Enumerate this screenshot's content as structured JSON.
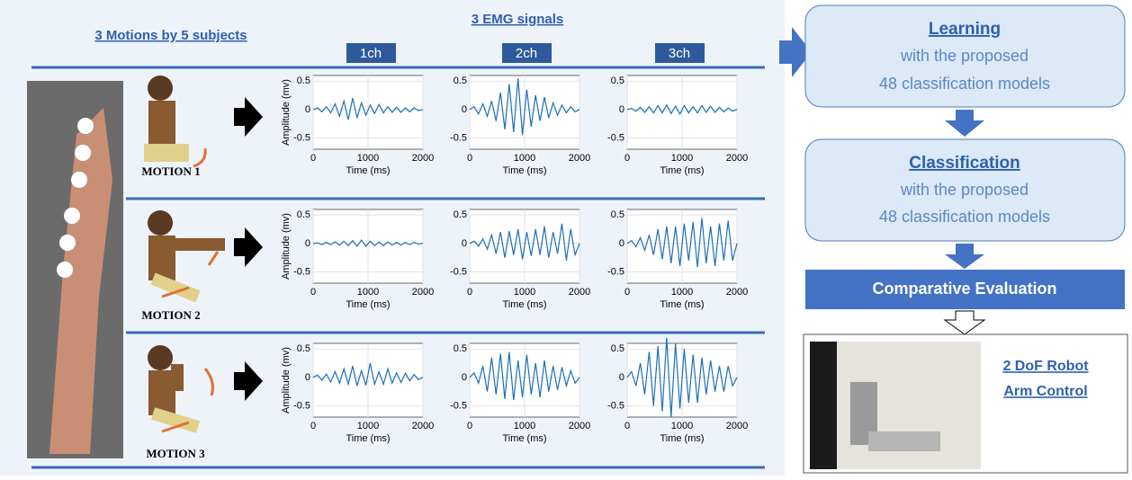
{
  "left": {
    "title": "3 Motions by 5 subjects",
    "signals_title": "3 EMG signals",
    "channels": [
      "1ch",
      "2ch",
      "3ch"
    ],
    "motions": [
      "MOTION 1",
      "MOTION 2",
      "MOTION 3"
    ]
  },
  "plot_axes": {
    "ylabel": "Amplitude (mv)",
    "xlabel": "Time (ms)",
    "xlim": [
      0,
      2000
    ],
    "xticks": [
      0,
      1000,
      2000
    ],
    "ylim": [
      -0.7,
      0.6
    ],
    "yticks": [
      -0.5,
      0,
      0.5
    ],
    "sample_times": [
      0,
      80,
      160,
      240,
      320,
      400,
      480,
      560,
      640,
      720,
      800,
      880,
      960,
      1040,
      1120,
      1200,
      1280,
      1360,
      1440,
      1520,
      1600,
      1680,
      1760,
      1840,
      1920,
      2000
    ]
  },
  "signals": [
    [
      [
        0,
        0.03,
        -0.04,
        0.05,
        -0.06,
        0.1,
        -0.12,
        0.15,
        -0.18,
        0.2,
        -0.15,
        0.12,
        -0.1,
        0.08,
        -0.07,
        0.09,
        -0.06,
        0.05,
        -0.05,
        0.04,
        -0.05,
        0.03,
        -0.04,
        0.03,
        -0.02,
        0
      ],
      [
        0,
        0.05,
        -0.08,
        0.1,
        -0.12,
        0.15,
        -0.2,
        0.3,
        -0.35,
        0.45,
        -0.4,
        0.55,
        -0.45,
        0.35,
        -0.3,
        0.25,
        -0.2,
        0.22,
        -0.15,
        0.12,
        -0.1,
        0.08,
        -0.06,
        0.05,
        -0.04,
        0
      ],
      [
        0,
        0.02,
        -0.03,
        0.04,
        -0.05,
        0.05,
        -0.06,
        0.07,
        -0.06,
        0.08,
        -0.07,
        0.06,
        -0.08,
        0.07,
        -0.06,
        0.05,
        -0.06,
        0.07,
        -0.05,
        0.06,
        -0.05,
        0.04,
        -0.04,
        0.03,
        -0.03,
        0
      ]
    ],
    [
      [
        0,
        0.01,
        -0.02,
        0.02,
        -0.02,
        0.03,
        -0.03,
        0.04,
        -0.04,
        0.05,
        -0.05,
        0.06,
        -0.05,
        0.04,
        -0.04,
        0.03,
        -0.04,
        0.03,
        -0.03,
        0.02,
        -0.03,
        0.02,
        -0.02,
        0.02,
        -0.01,
        0
      ],
      [
        0,
        0.04,
        -0.05,
        0.08,
        -0.1,
        0.15,
        -0.18,
        0.2,
        -0.25,
        0.22,
        -0.2,
        0.25,
        -0.28,
        0.2,
        -0.22,
        0.25,
        -0.2,
        0.3,
        -0.25,
        0.2,
        -0.18,
        0.35,
        -0.3,
        0.25,
        -0.2,
        0
      ],
      [
        0,
        0.05,
        -0.06,
        0.1,
        -0.12,
        0.15,
        -0.2,
        0.25,
        -0.28,
        0.3,
        -0.35,
        0.3,
        -0.4,
        0.35,
        -0.3,
        0.38,
        -0.42,
        0.45,
        -0.35,
        0.3,
        -0.4,
        0.35,
        -0.3,
        0.4,
        -0.3,
        0
      ]
    ],
    [
      [
        0,
        0.04,
        -0.05,
        0.06,
        -0.08,
        0.1,
        -0.1,
        0.15,
        -0.12,
        0.2,
        -0.15,
        0.12,
        -0.14,
        0.25,
        -0.12,
        0.1,
        -0.12,
        0.15,
        -0.1,
        0.08,
        -0.09,
        0.07,
        -0.06,
        0.05,
        -0.04,
        0
      ],
      [
        0,
        0.08,
        -0.1,
        0.2,
        -0.25,
        0.35,
        -0.3,
        0.42,
        -0.38,
        0.45,
        -0.4,
        0.3,
        -0.35,
        0.4,
        -0.3,
        0.25,
        -0.35,
        0.3,
        -0.25,
        0.2,
        -0.22,
        0.18,
        -0.15,
        0.12,
        -0.1,
        0
      ],
      [
        0,
        0.1,
        -0.15,
        0.25,
        -0.3,
        0.45,
        -0.5,
        0.55,
        -0.6,
        0.7,
        -0.7,
        0.6,
        -0.55,
        0.5,
        -0.45,
        0.4,
        -0.45,
        0.35,
        -0.3,
        0.3,
        -0.25,
        0.2,
        -0.25,
        0.2,
        -0.15,
        0
      ]
    ]
  ],
  "flow": {
    "learning_title": "Learning",
    "learning_line1": "with the proposed",
    "learning_line2": "48 classification models",
    "classification_title": "Classification",
    "classification_line1": "with the proposed",
    "classification_line2": "48 classification models",
    "evaluation": "Comparative Evaluation",
    "robot_line1": "2 DoF Robot",
    "robot_line2": "Arm Control"
  }
}
